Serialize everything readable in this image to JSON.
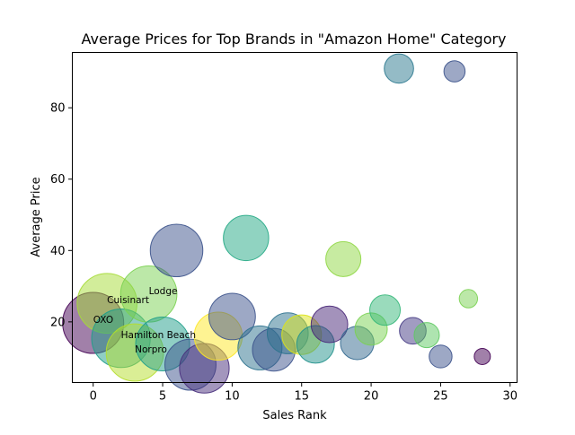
{
  "chart_data": {
    "type": "scatter",
    "title": "Average Prices for Top Brands in \"Amazon Home\" Category",
    "xlabel": "Sales Rank",
    "ylabel": "Average Price",
    "xlim": [
      -1.5,
      30.5
    ],
    "ylim": [
      3,
      95.5
    ],
    "xticks": [
      0,
      5,
      10,
      15,
      20,
      25,
      30
    ],
    "yticks": [
      20,
      40,
      60,
      80
    ],
    "grid": false,
    "legend": "none",
    "bubble_color_map": "viridis",
    "bubble_opacity": 0.5,
    "points": [
      {
        "x": 0,
        "y": 19.7,
        "size": 100,
        "color": "#440154",
        "label": "OXO"
      },
      {
        "x": 1,
        "y": 25.2,
        "size": 96,
        "color": "#a5db36",
        "label": "Cuisinart"
      },
      {
        "x": 2,
        "y": 15.4,
        "size": 92,
        "color": "#1f9e89",
        "label": "Hamilton Beach"
      },
      {
        "x": 3,
        "y": 11.4,
        "size": 88,
        "color": "#b5de2b",
        "label": "Norpro"
      },
      {
        "x": 4,
        "y": 27.8,
        "size": 85,
        "color": "#7ad151",
        "label": "Lodge"
      },
      {
        "x": 5,
        "y": 13.8,
        "size": 78,
        "color": "#1f9e89",
        "label": ""
      },
      {
        "x": 6,
        "y": 40.0,
        "size": 74,
        "color": "#3b528b",
        "label": ""
      },
      {
        "x": 7,
        "y": 8.0,
        "size": 70,
        "color": "#3b528b",
        "label": ""
      },
      {
        "x": 8,
        "y": 7.0,
        "size": 66,
        "color": "#472d7b",
        "label": ""
      },
      {
        "x": 9,
        "y": 16.0,
        "size": 62,
        "color": "#fde725",
        "label": ""
      },
      {
        "x": 10,
        "y": 21.5,
        "size": 58,
        "color": "#3b528b",
        "label": ""
      },
      {
        "x": 11,
        "y": 43.5,
        "size": 55,
        "color": "#22a884",
        "label": ""
      },
      {
        "x": 12,
        "y": 12.7,
        "size": 52,
        "color": "#2c728e",
        "label": ""
      },
      {
        "x": 13,
        "y": 12.2,
        "size": 49,
        "color": "#3b528b",
        "label": ""
      },
      {
        "x": 14,
        "y": 16.8,
        "size": 45,
        "color": "#2c728e",
        "label": ""
      },
      {
        "x": 15,
        "y": 16.4,
        "size": 42,
        "color": "#dce319",
        "label": ""
      },
      {
        "x": 16,
        "y": 13.7,
        "size": 38,
        "color": "#21918c",
        "label": ""
      },
      {
        "x": 17,
        "y": 19.3,
        "size": 36,
        "color": "#482677",
        "label": ""
      },
      {
        "x": 18,
        "y": 37.6,
        "size": 33,
        "color": "#8fd744",
        "label": ""
      },
      {
        "x": 19,
        "y": 14.1,
        "size": 30,
        "color": "#31688e",
        "label": ""
      },
      {
        "x": 20,
        "y": 18.0,
        "size": 28,
        "color": "#7ad151",
        "label": ""
      },
      {
        "x": 21,
        "y": 23.3,
        "size": 25,
        "color": "#35b779",
        "label": ""
      },
      {
        "x": 22,
        "y": 91.0,
        "size": 23,
        "color": "#2a788e",
        "label": ""
      },
      {
        "x": 23,
        "y": 17.5,
        "size": 19,
        "color": "#443a83",
        "label": ""
      },
      {
        "x": 24,
        "y": 16.3,
        "size": 17,
        "color": "#5ec962",
        "label": ""
      },
      {
        "x": 25,
        "y": 10.3,
        "size": 14,
        "color": "#3b528b",
        "label": ""
      },
      {
        "x": 26,
        "y": 90.2,
        "size": 12,
        "color": "#3b528b",
        "label": ""
      },
      {
        "x": 27,
        "y": 26.5,
        "size": 9,
        "color": "#7ad151",
        "label": ""
      },
      {
        "x": 28,
        "y": 10.3,
        "size": 7,
        "color": "#440154",
        "label": ""
      }
    ]
  }
}
